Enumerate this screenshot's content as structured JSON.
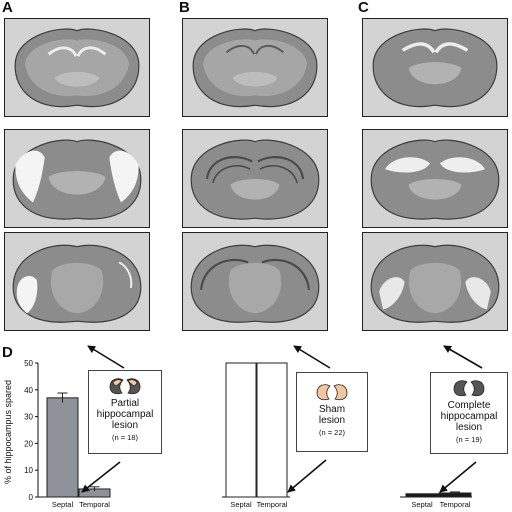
{
  "panels": {
    "a": "A",
    "b": "B",
    "c": "C",
    "d": "D"
  },
  "groups": [
    {
      "lines": [
        "Partial",
        "hippocampal",
        "lesion"
      ],
      "n": "(n = 18)",
      "brain_color": "#555555",
      "lesion_color": "#f2c79d"
    },
    {
      "lines": [
        "Sham",
        "lesion"
      ],
      "n": "(n = 22)",
      "brain_color": "#f2c79d",
      "lesion_color": "#f2c79d"
    },
    {
      "lines": [
        "Complete",
        "hippocampal",
        "lesion"
      ],
      "n": "(n = 19)",
      "brain_color": "#555555",
      "lesion_color": "#555555"
    }
  ],
  "chart_data": {
    "type": "bar",
    "ylabel": "% of hippocampus spared",
    "ylim": [
      0,
      50
    ],
    "yticks": [
      0,
      10,
      20,
      30,
      40,
      50
    ],
    "groups": [
      {
        "categories": [
          "Septal",
          "Temporal"
        ],
        "values": [
          37,
          3
        ],
        "errors": [
          1.8,
          0.8
        ],
        "fill": "#8f9299"
      },
      {
        "categories": [
          "Septal",
          "Temporal"
        ],
        "values": [
          50,
          50
        ],
        "errors": [
          0,
          0
        ],
        "fill": "#ffffff"
      },
      {
        "categories": [
          "Septal",
          "Temporal"
        ],
        "values": [
          1.2,
          1.5
        ],
        "errors": [
          0,
          0.4
        ],
        "fill": "#1a1a1a"
      }
    ]
  }
}
